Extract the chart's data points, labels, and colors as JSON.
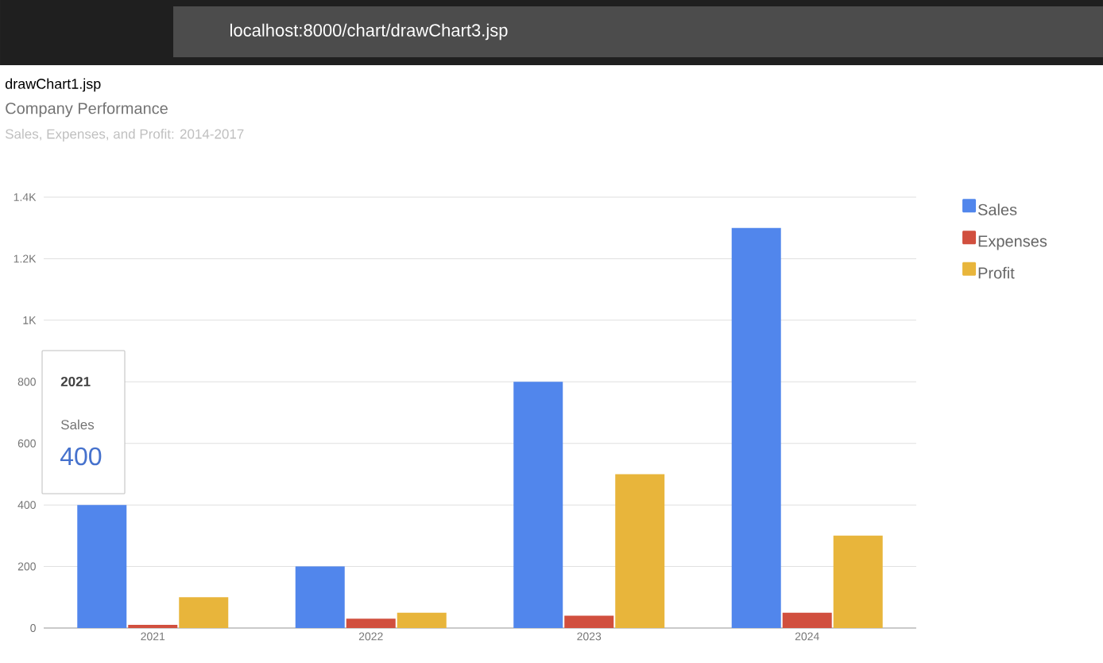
{
  "chart_data": {
    "type": "bar",
    "title": "Company Performance",
    "subtitle": "Sales, Expenses, and Profit: 2014-2017",
    "annotations": [
      "localhost:8000/chart/drawChart3.jsp",
      "drawChart1.jsp",
      "2021",
      "Sales",
      "400"
    ],
    "categories": [
      "2021",
      "2022",
      "2023",
      "2024"
    ],
    "series": [
      {
        "name": "Sales",
        "color": "#5186ec",
        "values": [
          400,
          200,
          800,
          1300
        ]
      },
      {
        "name": "Expenses",
        "color": "#d14f3e",
        "values": [
          10,
          30,
          40,
          50
        ]
      },
      {
        "name": "Profit",
        "color": "#e8b53b",
        "values": [
          100,
          50,
          500,
          300
        ]
      }
    ],
    "ylim": [
      0,
      1400
    ],
    "yticks": [
      0,
      200,
      400,
      600,
      800,
      {
        "value": 1000,
        "label": "1K"
      },
      {
        "value": 1200,
        "label": "1.2K"
      },
      {
        "value": 1400,
        "label": "1.4K"
      }
    ],
    "grid": "y",
    "legend": "right"
  }
}
